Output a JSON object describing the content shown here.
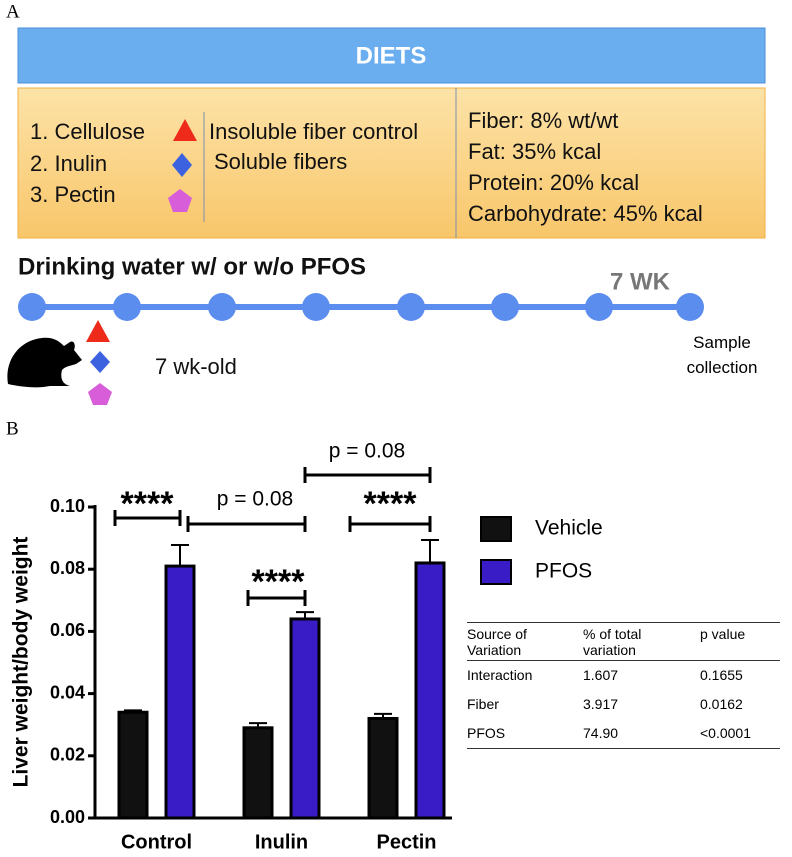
{
  "panel_a": {
    "label": "A",
    "banner": "DIETS",
    "diets": [
      "1. Cellulose",
      "2. Inulin",
      "3. Pectin"
    ],
    "fiber_types": [
      "Insoluble fiber control",
      "Soluble fibers"
    ],
    "composition": [
      "Fiber: 8% wt/wt",
      "Fat: 35% kcal",
      "Protein: 20% kcal",
      "Carbohydrate: 45% kcal"
    ],
    "treatment": "Drinking water w/ or w/o PFOS",
    "duration": "7 WK",
    "start_age": "7 wk-old",
    "endpoint": "Sample collection"
  },
  "panel_b_label": "B",
  "chart_data": {
    "type": "bar",
    "y_label": "Liver weight/body weight",
    "categories": [
      "Control",
      "Inulin",
      "Pectin"
    ],
    "series": [
      {
        "name": "Vehicle",
        "color": "#111111",
        "values": [
          0.034,
          0.029,
          0.032
        ],
        "errors": [
          0.0006,
          0.0015,
          0.0015
        ]
      },
      {
        "name": "PFOS",
        "color": "#3a1cc6",
        "values": [
          0.081,
          0.064,
          0.082
        ],
        "errors": [
          0.0068,
          0.0022,
          0.0074
        ]
      }
    ],
    "ylim": [
      0,
      0.1
    ],
    "yticks": [
      {
        "value": 0,
        "label": "0.00"
      },
      {
        "value": 0.02,
        "label": "0.02"
      },
      {
        "value": 0.04,
        "label": "0.04"
      },
      {
        "value": 0.06,
        "label": "0.06"
      },
      {
        "value": 0.08,
        "label": "0.08"
      },
      {
        "value": 0.1,
        "label": "0.10"
      }
    ],
    "annotations": [
      "****",
      "p = 0.08",
      "****",
      "p = 0.08",
      "****"
    ]
  },
  "table": {
    "header": [
      "Source of Variation",
      "% of total variation",
      "p value"
    ],
    "rows": [
      [
        "Interaction",
        "1.607",
        "0.1655"
      ],
      [
        "Fiber",
        "3.917",
        "0.0162"
      ],
      [
        "PFOS",
        "74.90",
        "<0.0001"
      ]
    ]
  }
}
